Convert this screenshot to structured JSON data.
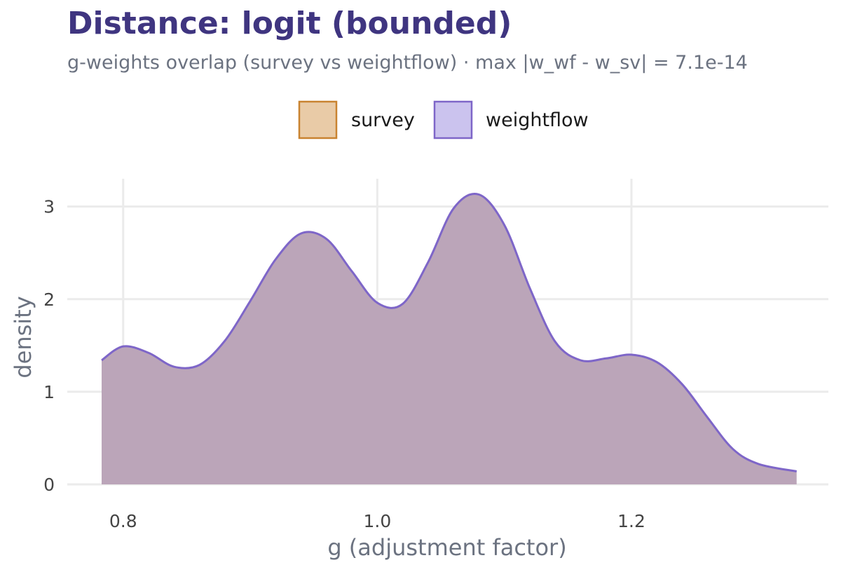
{
  "chart_data": {
    "type": "area",
    "title": "Distance: logit (bounded)",
    "subtitle": "g-weights overlap (survey vs weightflow) · max |w_wf - w_sv| = 7.1e-14",
    "xlabel": "g (adjustment factor)",
    "ylabel": "density",
    "xlim": [
      0.756,
      1.355
    ],
    "ylim": [
      0,
      3.3
    ],
    "x_ticks": [
      "0.8",
      "1.0",
      "1.2"
    ],
    "y_ticks": [
      "0",
      "1",
      "2",
      "3"
    ],
    "grid": true,
    "legend_position": "top",
    "series": [
      {
        "name": "survey",
        "fill": "#E9CBA7",
        "stroke": "#C98330",
        "x": [
          0.783,
          0.8,
          0.82,
          0.84,
          0.86,
          0.88,
          0.9,
          0.92,
          0.94,
          0.96,
          0.98,
          1.0,
          1.02,
          1.04,
          1.06,
          1.08,
          1.1,
          1.12,
          1.14,
          1.16,
          1.18,
          1.2,
          1.22,
          1.24,
          1.26,
          1.28,
          1.3,
          1.33
        ],
        "y": [
          1.34,
          1.49,
          1.42,
          1.27,
          1.29,
          1.55,
          1.98,
          2.43,
          2.71,
          2.65,
          2.3,
          1.96,
          1.95,
          2.4,
          2.98,
          3.13,
          2.8,
          2.12,
          1.54,
          1.34,
          1.36,
          1.4,
          1.32,
          1.08,
          0.72,
          0.38,
          0.22,
          0.14
        ]
      },
      {
        "name": "weightflow",
        "fill": "#CBC3EE",
        "stroke": "#7E66C8",
        "x": [
          0.783,
          0.8,
          0.82,
          0.84,
          0.86,
          0.88,
          0.9,
          0.92,
          0.94,
          0.96,
          0.98,
          1.0,
          1.02,
          1.04,
          1.06,
          1.08,
          1.1,
          1.12,
          1.14,
          1.16,
          1.18,
          1.2,
          1.22,
          1.24,
          1.26,
          1.28,
          1.3,
          1.33
        ],
        "y": [
          1.34,
          1.49,
          1.42,
          1.27,
          1.29,
          1.55,
          1.98,
          2.43,
          2.71,
          2.65,
          2.3,
          1.96,
          1.95,
          2.4,
          2.98,
          3.13,
          2.8,
          2.12,
          1.54,
          1.34,
          1.36,
          1.4,
          1.32,
          1.08,
          0.72,
          0.38,
          0.22,
          0.14
        ]
      }
    ],
    "overlap_fill": "#BBA5B9"
  }
}
